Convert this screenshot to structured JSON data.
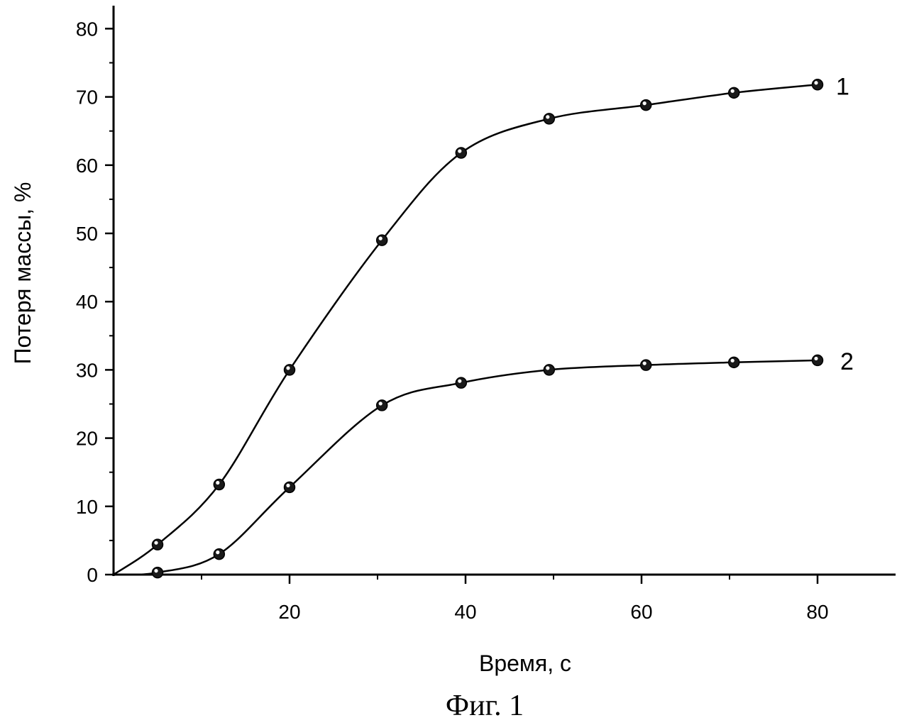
{
  "chart_data": {
    "type": "line",
    "title": "",
    "caption": "Фиг. 1",
    "xlabel": "Время, с",
    "ylabel": "Потеря массы, %",
    "xlim": [
      0,
      88
    ],
    "ylim": [
      0,
      82
    ],
    "x_ticks": [
      20,
      40,
      60,
      80
    ],
    "y_ticks": [
      0,
      10,
      20,
      30,
      40,
      50,
      60,
      70,
      80
    ],
    "grid": false,
    "series": [
      {
        "name": "1",
        "color": "#000000",
        "points": [
          {
            "x": 0,
            "y": 0
          },
          {
            "x": 5,
            "y": 4.4
          },
          {
            "x": 12,
            "y": 13.2
          },
          {
            "x": 20,
            "y": 30.0
          },
          {
            "x": 30.5,
            "y": 49.0
          },
          {
            "x": 39.5,
            "y": 61.8
          },
          {
            "x": 49.5,
            "y": 66.8
          },
          {
            "x": 60.5,
            "y": 68.8
          },
          {
            "x": 70.5,
            "y": 70.6
          },
          {
            "x": 80,
            "y": 71.8
          }
        ]
      },
      {
        "name": "2",
        "color": "#000000",
        "points": [
          {
            "x": 0,
            "y": 0
          },
          {
            "x": 5,
            "y": 0.3
          },
          {
            "x": 12,
            "y": 3.0
          },
          {
            "x": 20,
            "y": 12.8
          },
          {
            "x": 30.5,
            "y": 24.8
          },
          {
            "x": 39.5,
            "y": 28.1
          },
          {
            "x": 49.5,
            "y": 30.0
          },
          {
            "x": 60.5,
            "y": 30.7
          },
          {
            "x": 70.5,
            "y": 31.1
          },
          {
            "x": 80,
            "y": 31.4
          }
        ]
      }
    ]
  }
}
